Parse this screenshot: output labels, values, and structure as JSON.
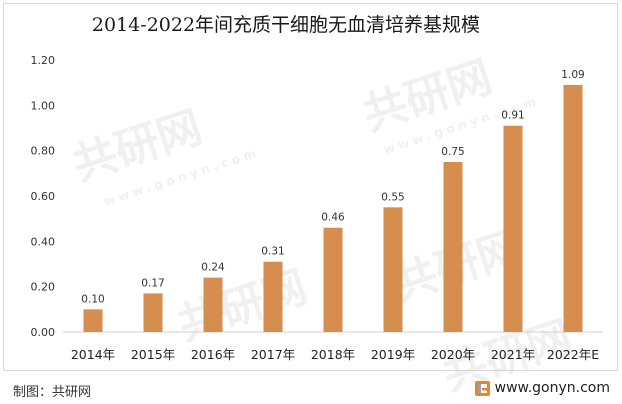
{
  "chart_data": {
    "type": "bar",
    "title": "2014-2022年间充质干细胞无血清培养基规模",
    "categories": [
      "2014年",
      "2015年",
      "2016年",
      "2017年",
      "2018年",
      "2019年",
      "2020年",
      "2021年",
      "2022年E"
    ],
    "values": [
      0.1,
      0.17,
      0.24,
      0.31,
      0.46,
      0.55,
      0.75,
      0.91,
      1.09
    ],
    "value_labels": [
      "0.10",
      "0.17",
      "0.24",
      "0.31",
      "0.46",
      "0.55",
      "0.75",
      "0.91",
      "1.09"
    ],
    "yticks": [
      "0.00",
      "0.20",
      "0.40",
      "0.60",
      "0.80",
      "1.00",
      "1.20"
    ],
    "ylim": [
      0,
      1.2
    ],
    "grid": false,
    "legend": "none",
    "bar_color": "#D58E4E"
  },
  "footer": {
    "credit": "制图：共研网",
    "site": "www.gonyn.com"
  },
  "watermark": {
    "brand": "共研网",
    "domain": "www.gonyn.com"
  },
  "colors": {
    "bar": "#D58E4E",
    "logo_orange": "#E8872A"
  }
}
